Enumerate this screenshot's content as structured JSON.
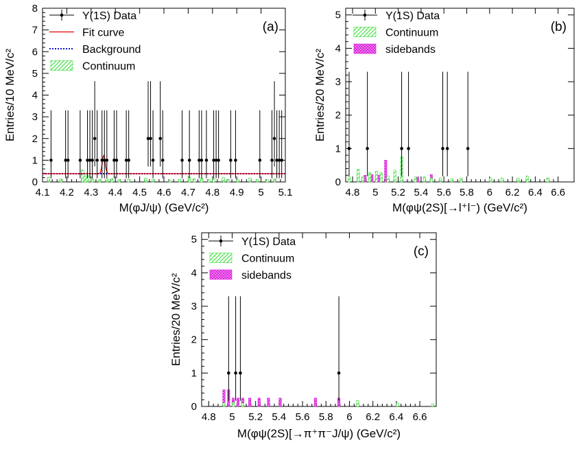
{
  "colors": {
    "data": "#000000",
    "fit": "#e00000",
    "background": "#1010c8",
    "continuum": "#33dd33",
    "sidebands": "#dd22dd"
  },
  "chart_data": [
    {
      "id": "a",
      "type": "scatter",
      "panel_label": "(a)",
      "xlabel": "M(φJ/ψ) (GeV/c²)",
      "ylabel": "Entries/10 MeV/c²",
      "xlim": [
        4.1,
        5.1
      ],
      "ylim": [
        0,
        8
      ],
      "xticks": [
        4.1,
        4.2,
        4.3,
        4.4,
        4.5,
        4.6,
        4.7,
        4.8,
        4.9,
        5,
        5.1
      ],
      "xtick_labels": [
        "4.1",
        "4.2",
        "4.3",
        "4.4",
        "4.5",
        "4.6",
        "4.7",
        "4.8",
        "4.9",
        "5",
        "5.1"
      ],
      "yticks": [
        0,
        1,
        2,
        3,
        4,
        5,
        6,
        7,
        8
      ],
      "ytick_labels": [
        "0",
        "1",
        "2",
        "3",
        "4",
        "5",
        "6",
        "7",
        "8"
      ],
      "legend_position": "top-left",
      "legend": [
        {
          "key": "data",
          "label": "Υ(1S) Data"
        },
        {
          "key": "fit",
          "label": "Fit curve"
        },
        {
          "key": "background",
          "label": "Background"
        },
        {
          "key": "continuum",
          "label": "Continuum"
        }
      ],
      "data_points": [
        {
          "x": 4.135,
          "y": 1
        },
        {
          "x": 4.195,
          "y": 1
        },
        {
          "x": 4.205,
          "y": 1
        },
        {
          "x": 4.255,
          "y": 1
        },
        {
          "x": 4.285,
          "y": 1
        },
        {
          "x": 4.295,
          "y": 1
        },
        {
          "x": 4.305,
          "y": 1
        },
        {
          "x": 4.315,
          "y": 2
        },
        {
          "x": 4.325,
          "y": 1
        },
        {
          "x": 4.345,
          "y": 1
        },
        {
          "x": 4.355,
          "y": 1
        },
        {
          "x": 4.365,
          "y": 1
        },
        {
          "x": 4.395,
          "y": 1
        },
        {
          "x": 4.405,
          "y": 1
        },
        {
          "x": 4.445,
          "y": 1
        },
        {
          "x": 4.455,
          "y": 1
        },
        {
          "x": 4.535,
          "y": 2
        },
        {
          "x": 4.545,
          "y": 2
        },
        {
          "x": 4.555,
          "y": 1
        },
        {
          "x": 4.585,
          "y": 2
        },
        {
          "x": 4.595,
          "y": 1
        },
        {
          "x": 4.675,
          "y": 1
        },
        {
          "x": 4.705,
          "y": 1
        },
        {
          "x": 4.745,
          "y": 1
        },
        {
          "x": 4.755,
          "y": 1
        },
        {
          "x": 4.775,
          "y": 1
        },
        {
          "x": 4.805,
          "y": 1
        },
        {
          "x": 4.815,
          "y": 1
        },
        {
          "x": 4.825,
          "y": 1
        },
        {
          "x": 4.875,
          "y": 1
        },
        {
          "x": 4.895,
          "y": 1
        },
        {
          "x": 4.995,
          "y": 1
        },
        {
          "x": 5.045,
          "y": 1
        },
        {
          "x": 5.055,
          "y": 2
        },
        {
          "x": 5.065,
          "y": 1
        },
        {
          "x": 5.075,
          "y": 1
        },
        {
          "x": 5.085,
          "y": 1
        }
      ],
      "error_bars": {
        "1": [
          0.83,
          2.3
        ],
        "2": [
          1.29,
          2.64
        ]
      },
      "background_level": 0.38,
      "fit_peak": {
        "mean": 4.352,
        "sigma": 0.006,
        "amplitude": 0.84
      },
      "continuum": {
        "bin_width": 0.01,
        "bins": [
          [
            4.125,
            0.22
          ],
          [
            4.175,
            0.15
          ],
          [
            4.265,
            0.55
          ],
          [
            4.275,
            0.28
          ],
          [
            4.285,
            0.3
          ],
          [
            4.305,
            0.15
          ],
          [
            4.335,
            0.1
          ],
          [
            4.365,
            0.15
          ],
          [
            4.385,
            0.15
          ],
          [
            4.415,
            0.1
          ],
          [
            4.455,
            0.12
          ],
          [
            4.525,
            0.18
          ],
          [
            4.555,
            0.12
          ],
          [
            4.625,
            0.08
          ],
          [
            4.665,
            0.12
          ],
          [
            4.705,
            0.22
          ],
          [
            4.725,
            0.15
          ],
          [
            4.755,
            0.18
          ],
          [
            4.785,
            0.1
          ],
          [
            4.805,
            0.15
          ],
          [
            4.845,
            0.2
          ],
          [
            4.865,
            0.12
          ],
          [
            4.905,
            0.1
          ],
          [
            4.955,
            0.18
          ],
          [
            4.985,
            0.12
          ],
          [
            5.025,
            0.1
          ],
          [
            5.055,
            0.15
          ]
        ]
      }
    },
    {
      "id": "b",
      "type": "scatter",
      "panel_label": "(b)",
      "xlabel": "M(φψ(2S)[→l⁺l⁻) (GeV/c²)",
      "ylabel": "Entries/20 MeV/c²",
      "xlim": [
        4.74,
        6.74
      ],
      "ylim": [
        0,
        5.2
      ],
      "xticks": [
        4.8,
        5,
        5.2,
        5.4,
        5.6,
        5.8,
        6,
        6.2,
        6.4,
        6.6
      ],
      "xtick_labels": [
        "4.8",
        "5",
        "5.2",
        "5.4",
        "5.6",
        "5.8",
        "6",
        "6.2",
        "6.4",
        "6.6"
      ],
      "yticks": [
        0,
        1,
        2,
        3,
        4,
        5
      ],
      "ytick_labels": [
        "0",
        "1",
        "2",
        "3",
        "4",
        "5"
      ],
      "legend_position": "top-left",
      "legend": [
        {
          "key": "data",
          "label": "Υ(1S) Data"
        },
        {
          "key": "continuum",
          "label": "Continuum"
        },
        {
          "key": "sidebands",
          "label": "sidebands"
        }
      ],
      "data_points": [
        {
          "x": 4.77,
          "y": 1
        },
        {
          "x": 4.93,
          "y": 1
        },
        {
          "x": 5.23,
          "y": 1
        },
        {
          "x": 5.29,
          "y": 1
        },
        {
          "x": 5.59,
          "y": 1
        },
        {
          "x": 5.63,
          "y": 1
        },
        {
          "x": 5.81,
          "y": 1
        }
      ],
      "error_bars": {
        "1": [
          0.83,
          2.3
        ]
      },
      "continuum": {
        "bin_width": 0.02,
        "bins": [
          [
            4.77,
            0.15
          ],
          [
            4.85,
            0.38
          ],
          [
            4.89,
            0.15
          ],
          [
            4.95,
            0.28
          ],
          [
            5.01,
            0.32
          ],
          [
            5.05,
            0.28
          ],
          [
            5.11,
            0.18
          ],
          [
            5.17,
            0.35
          ],
          [
            5.23,
            0.75
          ],
          [
            5.35,
            0.15
          ],
          [
            5.43,
            0.15
          ],
          [
            5.49,
            0.12
          ],
          [
            5.57,
            0.12
          ],
          [
            5.67,
            0.1
          ],
          [
            5.75,
            0.12
          ],
          [
            6.01,
            0.12
          ],
          [
            6.11,
            0.12
          ],
          [
            6.25,
            0.12
          ],
          [
            6.33,
            0.18
          ],
          [
            6.51,
            0.12
          ]
        ]
      },
      "sidebands": {
        "bin_width": 0.02,
        "bins": [
          [
            4.85,
            0.22
          ],
          [
            4.91,
            0.2
          ],
          [
            4.97,
            0.22
          ],
          [
            5.03,
            0.2
          ],
          [
            5.09,
            0.65
          ],
          [
            5.23,
            0.5
          ],
          [
            5.37,
            0.15
          ],
          [
            5.49,
            0.22
          ]
        ]
      }
    },
    {
      "id": "c",
      "type": "scatter",
      "panel_label": "(c)",
      "xlabel": "M(φψ(2S)[→π⁺π⁻J/ψ) (GeV/c²)",
      "ylabel": "Entries/20 MeV/c²",
      "xlim": [
        4.74,
        6.74
      ],
      "ylim": [
        0,
        5.2
      ],
      "xticks": [
        4.8,
        5,
        5.2,
        5.4,
        5.6,
        5.8,
        6,
        6.2,
        6.4,
        6.6
      ],
      "xtick_labels": [
        "4.8",
        "5",
        "5.2",
        "5.4",
        "5.6",
        "5.8",
        "6",
        "6.2",
        "6.4",
        "6.6"
      ],
      "yticks": [
        0,
        1,
        2,
        3,
        4,
        5
      ],
      "ytick_labels": [
        "0",
        "1",
        "2",
        "3",
        "4",
        "5"
      ],
      "legend_position": "top-left",
      "legend": [
        {
          "key": "data",
          "label": "Υ(1S) Data"
        },
        {
          "key": "continuum",
          "label": "Continuum"
        },
        {
          "key": "sidebands",
          "label": "sidebands"
        }
      ],
      "data_points": [
        {
          "x": 4.97,
          "y": 1
        },
        {
          "x": 5.03,
          "y": 1
        },
        {
          "x": 5.07,
          "y": 1
        },
        {
          "x": 5.91,
          "y": 1
        }
      ],
      "error_bars": {
        "1": [
          0.83,
          2.3
        ]
      },
      "continuum": {
        "bin_width": 0.02,
        "bins": [
          [
            4.93,
            0.1
          ],
          [
            5.01,
            0.12
          ],
          [
            5.09,
            0.1
          ],
          [
            6.07,
            0.18
          ],
          [
            6.41,
            0.1
          ],
          [
            6.71,
            0.08
          ]
        ]
      },
      "sidebands": {
        "bin_width": 0.02,
        "bins": [
          [
            4.93,
            0.5
          ],
          [
            4.97,
            0.5
          ],
          [
            5.01,
            0.25
          ],
          [
            5.05,
            0.25
          ],
          [
            5.09,
            0.25
          ],
          [
            5.15,
            0.25
          ],
          [
            5.23,
            0.25
          ],
          [
            5.31,
            0.25
          ],
          [
            5.41,
            0.25
          ],
          [
            5.71,
            0.25
          ],
          [
            5.91,
            0.25
          ]
        ]
      }
    }
  ]
}
